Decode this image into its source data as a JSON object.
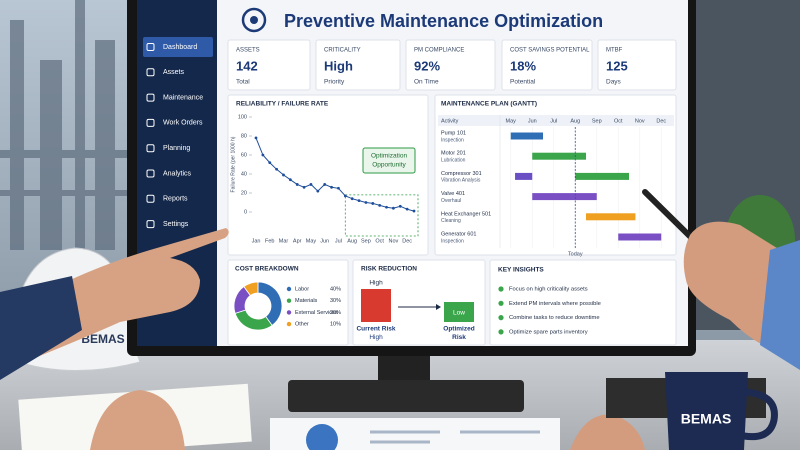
{
  "header": {
    "title": "Preventive Maintenance Optimization"
  },
  "sidebar": {
    "items": [
      "Dashboard",
      "Assets",
      "Maintenance",
      "Work Orders",
      "Planning",
      "Analytics",
      "Reports",
      "Settings"
    ]
  },
  "kpis": [
    {
      "label": "ASSETS",
      "value": "142",
      "note": "Total"
    },
    {
      "label": "CRITICALITY",
      "value": "High",
      "note": "Priority"
    },
    {
      "label": "PM COMPLIANCE",
      "value": "92%",
      "note": "On Time"
    },
    {
      "label": "COST SAVINGS POTENTIAL",
      "value": "18%",
      "note": "Potential"
    },
    {
      "label": "MTBF",
      "value": "125",
      "note": "Days"
    }
  ],
  "chart_data": [
    {
      "type": "line",
      "title": "RELIABILITY / FAILURE RATE",
      "ylabel": "Failure Rate (per 1000 h)",
      "categories": [
        "Jan",
        null,
        "Feb",
        null,
        "Mar",
        null,
        "Apr",
        null,
        "May",
        null,
        "Jun",
        null,
        "Jul",
        null,
        "Aug",
        null,
        "Sep",
        null,
        "Oct",
        null,
        "Nov",
        null,
        "Dec",
        null
      ],
      "values": [
        78,
        60,
        52,
        45,
        39,
        34,
        29,
        26,
        29,
        22,
        29,
        26,
        25,
        17,
        14,
        12,
        10,
        9,
        7,
        5,
        4,
        6,
        3,
        1
      ],
      "color": "#1f4e9a",
      "ylim": [
        0,
        100
      ],
      "yticks": [
        0,
        20,
        40,
        60,
        80,
        100
      ],
      "annotation": [
        "Optimization",
        "Opportunity"
      ],
      "annotation_color": "#2e9a44"
    },
    {
      "type": "gantt",
      "title": "MAINTENANCE PLAN (GANTT)",
      "column_header": "Activity",
      "xlim": [
        4.5,
        12.5
      ],
      "xticks": [
        {
          "value": 5,
          "label": "May"
        },
        {
          "value": 6,
          "label": "Jun"
        },
        {
          "value": 7,
          "label": "Jul"
        },
        {
          "value": 8,
          "label": "Aug"
        },
        {
          "value": 9,
          "label": "Sep"
        },
        {
          "value": 10,
          "label": "Oct"
        },
        {
          "value": 11,
          "label": "Nov"
        },
        {
          "value": 12,
          "label": "Dec"
        }
      ],
      "today": 8,
      "today_label": "Today",
      "tasks": [
        {
          "name": "Pump 101",
          "detail": "Inspection",
          "bars": [
            {
              "start": 5,
              "end": 6.5,
              "color": "#2f6db5"
            }
          ]
        },
        {
          "name": "Motor 201",
          "detail": "Lubrication",
          "bars": [
            {
              "start": 6,
              "end": 8.5,
              "color": "#3aa54a"
            }
          ]
        },
        {
          "name": "Compressor 301",
          "detail": "Vibration Analysis",
          "bars": [
            {
              "start": 5.2,
              "end": 6,
              "color": "#6a4fc4"
            },
            {
              "start": 8,
              "end": 10.5,
              "color": "#3aa54a"
            }
          ]
        },
        {
          "name": "Valve 401",
          "detail": "Overhaul",
          "bars": [
            {
              "start": 6,
              "end": 9,
              "color": "#7b4fc4"
            }
          ]
        },
        {
          "name": "Heat Exchanger 501",
          "detail": "Cleaning",
          "bars": [
            {
              "start": 8.5,
              "end": 10.8,
              "color": "#f0a020"
            }
          ]
        },
        {
          "name": "Generator 601",
          "detail": "Inspection",
          "bars": [
            {
              "start": 10,
              "end": 12,
              "color": "#7b4fc4"
            }
          ]
        }
      ]
    },
    {
      "type": "pie",
      "title": "COST BREAKDOWN",
      "donut": true,
      "categories": [
        "Labor",
        "Materials",
        "External Services",
        "Other"
      ],
      "values": [
        40,
        30,
        20,
        10
      ],
      "value_labels": [
        "40%",
        "30%",
        "20%",
        "10%"
      ],
      "colors": [
        "#2f6db5",
        "#3aa54a",
        "#7b4fc4",
        "#f0a020"
      ]
    }
  ],
  "risk": {
    "title": "RISK REDUCTION",
    "before": "High",
    "after": "Low",
    "before_caption": [
      "Current Risk",
      "High"
    ],
    "after_caption": [
      "Optimized",
      "Risk"
    ]
  },
  "insights": {
    "title": "KEY INSIGHTS",
    "items": [
      "Focus on high criticality assets",
      "Extend PM intervals where possible",
      "Combine tasks to reduce downtime",
      "Optimize spare parts inventory"
    ]
  },
  "photo": {
    "helmet": "BEMAS",
    "mug": "BEMAS"
  }
}
